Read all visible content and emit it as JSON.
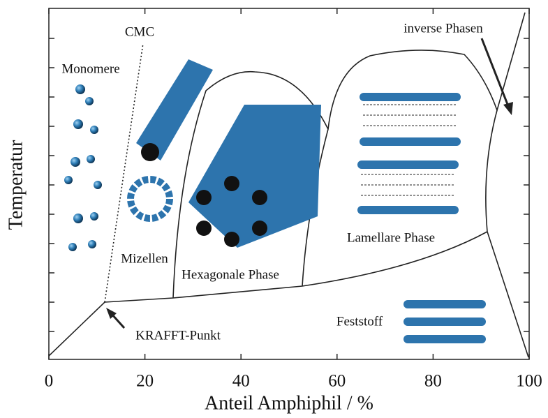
{
  "chart_data": {
    "type": "phase",
    "xlabel": "Anteil Amphiphil / %",
    "ylabel": "Temperatur",
    "xlim": [
      0,
      100
    ],
    "xticks": [
      0,
      20,
      40,
      60,
      80,
      100
    ],
    "annotations": [
      "CMC",
      "Monomere",
      "inverse Phasen",
      "Mizellen",
      "Hexagonale Phase",
      "Lamellare Phase",
      "Feststoff",
      "KRAFFT-Punkt"
    ]
  }
}
